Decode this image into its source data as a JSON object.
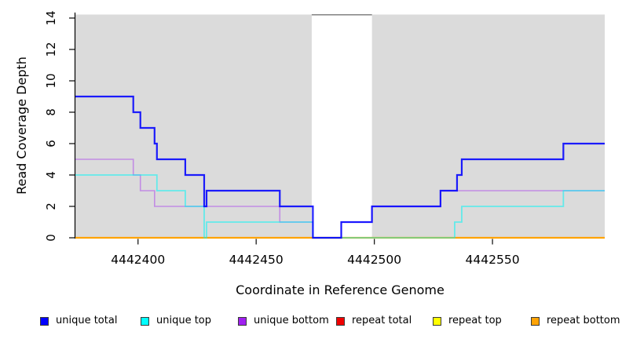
{
  "chart_data": {
    "type": "line",
    "subtype": "step-coverage",
    "title": "",
    "xlabel": "Coordinate in Reference Genome",
    "ylabel": "Read Coverage Depth",
    "xlim": [
      4442373.5,
      4442597.5
    ],
    "ylim": [
      0,
      14
    ],
    "x_ticks": [
      4442400,
      4442450,
      4442500,
      4442550
    ],
    "y_ticks": [
      0,
      2,
      4,
      6,
      8,
      10,
      12,
      14
    ],
    "grid": false,
    "legend_position": "bottom",
    "plot_background": "#DBDBDB",
    "uncovered_band": {
      "from": 4442473.5,
      "to": 4442499,
      "fill": "#FFFFFF",
      "top_edge_color": "#8A8A8A"
    },
    "series": [
      {
        "name": "unique total",
        "line_color": "rgba(0,0,255,0.88)",
        "legend_color": "#0000FF",
        "line_width": 2.2,
        "steps": [
          [
            4442373.5,
            9
          ],
          [
            4442398,
            8
          ],
          [
            4442401,
            7
          ],
          [
            4442407,
            6
          ],
          [
            4442408,
            5
          ],
          [
            4442420,
            4
          ],
          [
            4442428,
            2
          ],
          [
            4442429,
            3
          ],
          [
            4442460,
            2
          ],
          [
            4442474,
            0
          ],
          [
            4442486,
            1
          ],
          [
            4442499,
            2
          ],
          [
            4442528,
            3
          ],
          [
            4442535,
            4
          ],
          [
            4442537,
            5
          ],
          [
            4442580,
            6
          ]
        ]
      },
      {
        "name": "unique top",
        "line_color": "rgba(0,245,245,0.55)",
        "legend_color": "#00FFFF",
        "line_width": 1.8,
        "steps": [
          [
            4442373.5,
            4
          ],
          [
            4442408,
            3
          ],
          [
            4442420,
            2
          ],
          [
            4442428,
            0
          ],
          [
            4442429,
            1
          ],
          [
            4442474,
            0
          ],
          [
            4442534,
            1
          ],
          [
            4442537,
            2
          ],
          [
            4442580,
            3
          ]
        ]
      },
      {
        "name": "unique bottom",
        "line_color": "rgba(160,32,240,0.42)",
        "legend_color": "#A020F0",
        "line_width": 1.6,
        "steps": [
          [
            4442373.5,
            5
          ],
          [
            4442398,
            4
          ],
          [
            4442401,
            3
          ],
          [
            4442407,
            2
          ],
          [
            4442460,
            1
          ],
          [
            4442474,
            0
          ],
          [
            4442486,
            1
          ],
          [
            4442499,
            2
          ],
          [
            4442528,
            3
          ]
        ]
      },
      {
        "name": "repeat total",
        "line_color": "rgba(230,0,0,1)",
        "legend_color": "#F00000",
        "line_width": 1.6,
        "steps": [
          [
            4442373.5,
            0
          ]
        ]
      },
      {
        "name": "repeat top",
        "line_color": "rgba(255,255,0,1)",
        "legend_color": "#FFFF00",
        "line_width": 1.6,
        "steps": [
          [
            4442373.5,
            0
          ]
        ]
      },
      {
        "name": "repeat bottom",
        "line_color": "#FFA305",
        "legend_color": "#FFA305",
        "line_width": 2.2,
        "steps": [
          [
            4442373.5,
            0
          ]
        ]
      }
    ],
    "draw_order": [
      "repeat total",
      "repeat top",
      "repeat bottom",
      "unique bottom",
      "unique top",
      "unique total"
    ]
  },
  "axes": {
    "x_title": "Coordinate in Reference Genome",
    "y_title": "Read Coverage Depth"
  },
  "legend": {
    "items": [
      {
        "label": "unique total",
        "color": "#0000FF"
      },
      {
        "label": "unique top",
        "color": "#00FFFF"
      },
      {
        "label": "unique bottom",
        "color": "#A020F0"
      },
      {
        "label": "repeat total",
        "color": "#F00000"
      },
      {
        "label": "repeat top",
        "color": "#FFFF00"
      },
      {
        "label": "repeat bottom",
        "color": "#FFA305"
      }
    ]
  }
}
